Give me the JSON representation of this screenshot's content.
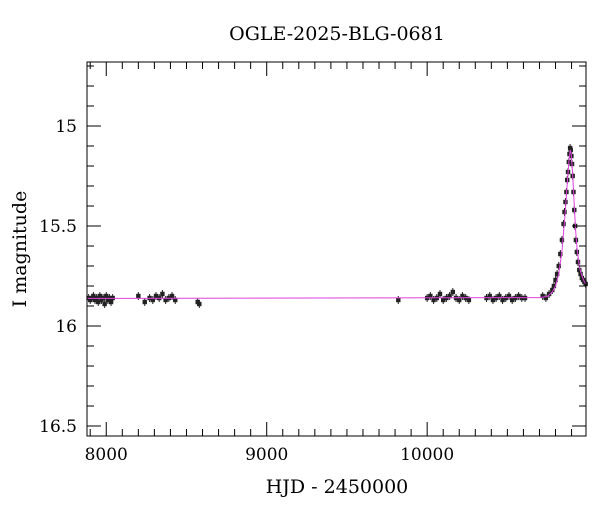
{
  "chart_data": {
    "type": "scatter",
    "title": "OGLE-2025-BLG-0681",
    "xlabel": "HJD - 2450000",
    "ylabel": "I magnitude",
    "xlim": [
      7880,
      10990
    ],
    "ylim": [
      16.55,
      14.68
    ],
    "y_inverted": true,
    "grid": false,
    "xticks": [
      8000,
      9000,
      10000
    ],
    "xtick_labels": [
      "8000",
      "9000",
      "10000"
    ],
    "yticks": [
      15,
      15.5,
      16,
      16.5
    ],
    "ytick_labels": [
      "15",
      "15.5",
      "16",
      "16.5"
    ],
    "baseline_magnitude": 15.86,
    "series": [
      {
        "kind": "observations",
        "points": [
          [
            7890,
            15.86
          ],
          [
            7900,
            15.87
          ],
          [
            7910,
            15.86
          ],
          [
            7920,
            15.85
          ],
          [
            7930,
            15.87
          ],
          [
            7940,
            15.86
          ],
          [
            7950,
            15.88
          ],
          [
            7960,
            15.85
          ],
          [
            7970,
            15.87
          ],
          [
            7980,
            15.86
          ],
          [
            7990,
            15.89
          ],
          [
            8000,
            15.85
          ],
          [
            8010,
            15.87
          ],
          [
            8020,
            15.86
          ],
          [
            8030,
            15.88
          ],
          [
            8040,
            15.86
          ],
          [
            8200,
            15.85
          ],
          [
            8240,
            15.88
          ],
          [
            8270,
            15.86
          ],
          [
            8290,
            15.87
          ],
          [
            8310,
            15.85
          ],
          [
            8330,
            15.86
          ],
          [
            8350,
            15.84
          ],
          [
            8370,
            15.87
          ],
          [
            8390,
            15.86
          ],
          [
            8410,
            15.85
          ],
          [
            8430,
            15.87
          ],
          [
            8570,
            15.88
          ],
          [
            8580,
            15.89
          ],
          [
            9820,
            15.87
          ],
          [
            10000,
            15.86
          ],
          [
            10020,
            15.85
          ],
          [
            10040,
            15.87
          ],
          [
            10060,
            15.86
          ],
          [
            10080,
            15.84
          ],
          [
            10100,
            15.87
          ],
          [
            10120,
            15.86
          ],
          [
            10140,
            15.85
          ],
          [
            10160,
            15.83
          ],
          [
            10180,
            15.86
          ],
          [
            10200,
            15.87
          ],
          [
            10220,
            15.85
          ],
          [
            10240,
            15.86
          ],
          [
            10260,
            15.87
          ],
          [
            10370,
            15.86
          ],
          [
            10390,
            15.85
          ],
          [
            10410,
            15.87
          ],
          [
            10430,
            15.86
          ],
          [
            10450,
            15.85
          ],
          [
            10470,
            15.87
          ],
          [
            10490,
            15.86
          ],
          [
            10510,
            15.85
          ],
          [
            10530,
            15.87
          ],
          [
            10550,
            15.86
          ],
          [
            10570,
            15.85
          ],
          [
            10590,
            15.86
          ],
          [
            10610,
            15.86
          ],
          [
            10720,
            15.85
          ],
          [
            10740,
            15.86
          ],
          [
            10760,
            15.84
          ],
          [
            10780,
            15.82
          ],
          [
            10790,
            15.8
          ],
          [
            10800,
            15.77
          ],
          [
            10810,
            15.74
          ],
          [
            10820,
            15.7
          ],
          [
            10830,
            15.64
          ],
          [
            10840,
            15.57
          ],
          [
            10850,
            15.49
          ],
          [
            10856,
            15.43
          ],
          [
            10862,
            15.38
          ],
          [
            10868,
            15.33
          ],
          [
            10873,
            15.27
          ],
          [
            10878,
            15.23
          ],
          [
            10883,
            15.18
          ],
          [
            10887,
            15.14
          ],
          [
            10891,
            15.11
          ],
          [
            10895,
            15.12
          ],
          [
            10899,
            15.15
          ],
          [
            10903,
            15.19
          ],
          [
            10907,
            15.25
          ],
          [
            10912,
            15.33
          ],
          [
            10917,
            15.42
          ],
          [
            10922,
            15.5
          ],
          [
            10927,
            15.57
          ],
          [
            10933,
            15.63
          ],
          [
            10940,
            15.68
          ],
          [
            10948,
            15.72
          ],
          [
            10956,
            15.74
          ],
          [
            10964,
            15.76
          ],
          [
            10972,
            15.77
          ],
          [
            10980,
            15.78
          ],
          [
            10988,
            15.79
          ]
        ]
      },
      {
        "kind": "model",
        "points": [
          [
            7880,
            15.862
          ],
          [
            10700,
            15.858
          ],
          [
            10750,
            15.852
          ],
          [
            10780,
            15.83
          ],
          [
            10800,
            15.8
          ],
          [
            10820,
            15.74
          ],
          [
            10840,
            15.63
          ],
          [
            10860,
            15.44
          ],
          [
            10875,
            15.27
          ],
          [
            10885,
            15.16
          ],
          [
            10892,
            15.12
          ],
          [
            10898,
            15.14
          ],
          [
            10905,
            15.22
          ],
          [
            10915,
            15.37
          ],
          [
            10925,
            15.52
          ],
          [
            10935,
            15.62
          ],
          [
            10950,
            15.71
          ],
          [
            10965,
            15.75
          ],
          [
            10980,
            15.78
          ],
          [
            10990,
            15.79
          ]
        ]
      }
    ],
    "colors": {
      "model": "#e040e0",
      "points": "#222222",
      "axes": "#000000"
    }
  }
}
